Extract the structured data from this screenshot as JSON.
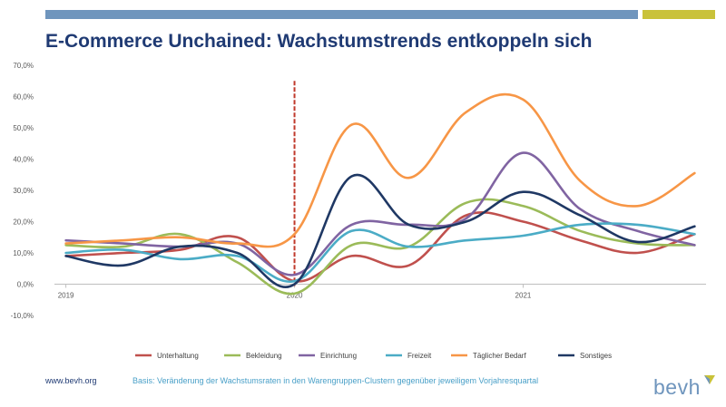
{
  "header": {
    "title": "E-Commerce Unchained: Wachstumstrends entkoppeln sich",
    "accent_blue": "#6f95bd",
    "accent_yellow": "#c9c23a"
  },
  "footer": {
    "url": "www.bevh.org",
    "note": "Basis: Veränderung der Wachstumsraten in den Warengruppen-Clustern gegenüber jeweiligem Vorjahresquartal",
    "logo": "bevh"
  },
  "chart_data": {
    "type": "line",
    "title": "",
    "xlabel": "",
    "ylabel": "",
    "x": [
      2019.0,
      2019.25,
      2019.5,
      2019.75,
      2020.0,
      2020.25,
      2020.5,
      2020.75,
      2021.0,
      2021.25,
      2021.5,
      2021.75
    ],
    "x_ticks": [
      {
        "value": 2019,
        "label": "2019"
      },
      {
        "value": 2020,
        "label": "2020"
      },
      {
        "value": 2021,
        "label": "2021"
      }
    ],
    "xlim": [
      2018.95,
      2021.8
    ],
    "ylim": [
      -10,
      70
    ],
    "y_ticks": [
      {
        "value": -10,
        "label": "-10,0%"
      },
      {
        "value": 0,
        "label": "0,0%"
      },
      {
        "value": 10,
        "label": "10,0%"
      },
      {
        "value": 20,
        "label": "20,0%"
      },
      {
        "value": 30,
        "label": "30,0%"
      },
      {
        "value": 40,
        "label": "40,0%"
      },
      {
        "value": 50,
        "label": "50,0%"
      },
      {
        "value": 60,
        "label": "60,0%"
      },
      {
        "value": 70,
        "label": "70,0%"
      }
    ],
    "grid": false,
    "legend_position": "bottom",
    "marker_line": {
      "x": 2020.0,
      "y_top": 65,
      "color": "#c0392b"
    },
    "series": [
      {
        "name": "Unterhaltung",
        "color": "#c0504d",
        "values": [
          9,
          10,
          11,
          15,
          1,
          9,
          6,
          22,
          20,
          14,
          10,
          16
        ]
      },
      {
        "name": "Bekleidung",
        "color": "#9bbb59",
        "values": [
          12.5,
          12,
          16,
          7,
          -3,
          12.5,
          12,
          26,
          25,
          17,
          13,
          12.5
        ]
      },
      {
        "name": "Einrichtung",
        "color": "#8064a2",
        "values": [
          14,
          13,
          12,
          13,
          3,
          19,
          19,
          21,
          42,
          24,
          17,
          12.5
        ]
      },
      {
        "name": "Freizeit",
        "color": "#4bacc6",
        "values": [
          10,
          11,
          8,
          9,
          1,
          17,
          12,
          14,
          15.5,
          19,
          19,
          16
        ]
      },
      {
        "name": "Täglicher Bedarf",
        "color": "#f79646",
        "values": [
          13,
          14,
          15,
          13,
          16,
          51,
          34,
          55,
          59,
          33,
          25,
          35.5
        ]
      },
      {
        "name": "Sonstiges",
        "color": "#1f3864",
        "values": [
          9,
          6,
          12,
          10,
          0,
          34.5,
          19,
          20,
          29.5,
          22,
          13.5,
          18.5
        ]
      }
    ]
  }
}
